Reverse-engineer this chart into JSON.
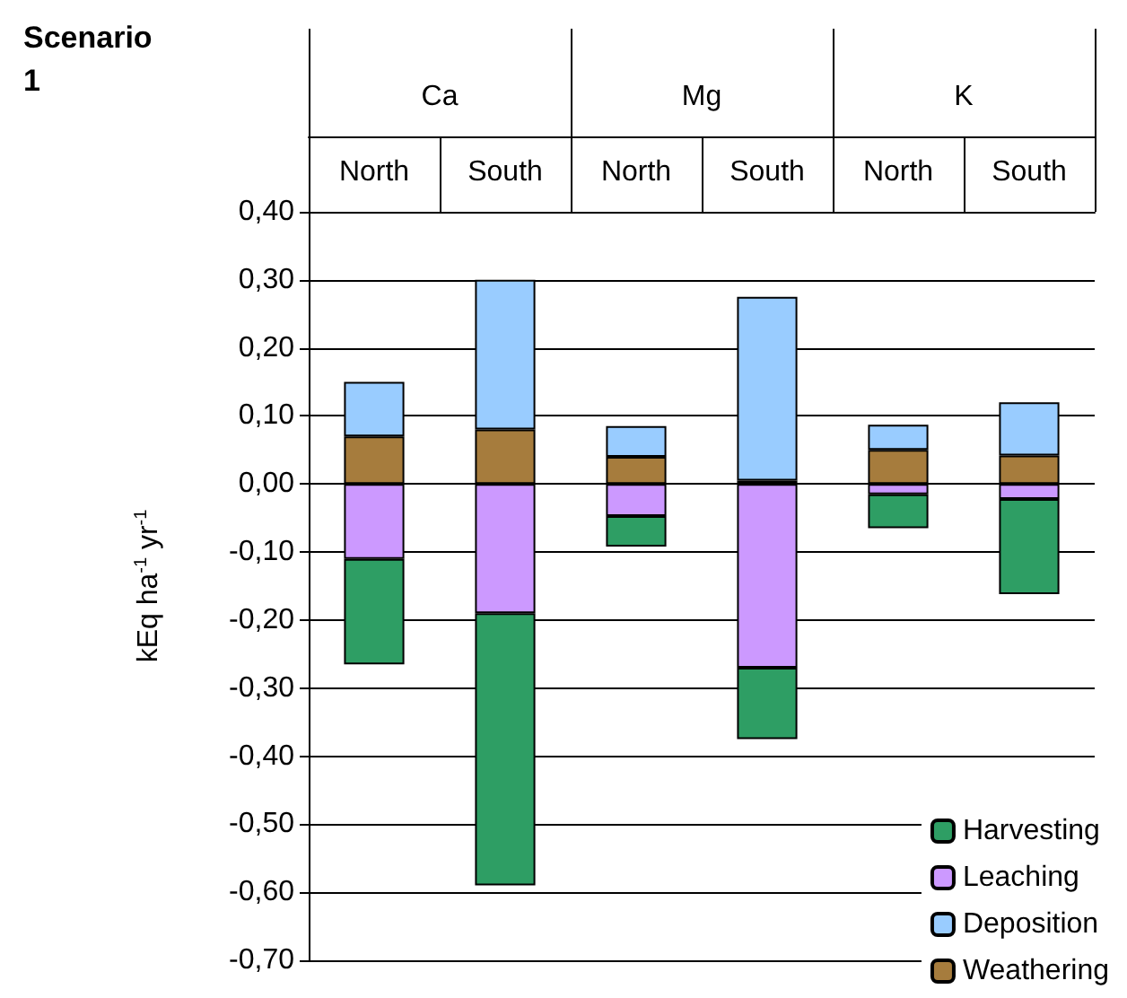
{
  "chart_data": {
    "type": "bar",
    "title": "Scenario 1",
    "ylabel": "kEq ha$^{-1}$ yr$^{-1}$",
    "categories": [
      "North",
      "South",
      "North",
      "South",
      "North",
      "South"
    ],
    "annotations": [
      "Ca",
      "Mg",
      "K"
    ],
    "stacked": true,
    "series": [
      {
        "name": "Weathering",
        "color": "#a67c3d",
        "values": [
          0.07,
          0.08,
          0.04,
          0.005,
          0.05,
          0.042
        ]
      },
      {
        "name": "Deposition",
        "color": "#99ccff",
        "values": [
          0.08,
          0.22,
          0.045,
          0.27,
          0.037,
          0.078
        ]
      },
      {
        "name": "Leaching",
        "color": "#cc99ff",
        "values": [
          -0.11,
          -0.19,
          -0.047,
          -0.27,
          -0.015,
          -0.022
        ]
      },
      {
        "name": "Harvesting",
        "color": "#2e9e64",
        "values": [
          -0.155,
          -0.4,
          -0.045,
          -0.105,
          -0.05,
          -0.14
        ]
      }
    ],
    "ylim": [
      -0.7,
      0.4
    ],
    "yticks": [
      {
        "value": 0.4,
        "label": "0,40"
      },
      {
        "value": 0.3,
        "label": "0,30"
      },
      {
        "value": 0.2,
        "label": "0,20"
      },
      {
        "value": 0.1,
        "label": "0,10"
      },
      {
        "value": 0,
        "label": "0,00"
      },
      {
        "value": -0.1,
        "label": "-0,10"
      },
      {
        "value": -0.2,
        "label": "-0,20"
      },
      {
        "value": -0.3,
        "label": "-0,30"
      },
      {
        "value": -0.4,
        "label": "-0,40"
      },
      {
        "value": -0.5,
        "label": "-0,50"
      },
      {
        "value": -0.6,
        "label": "-0,60"
      },
      {
        "value": -0.7,
        "label": "-0,70"
      }
    ],
    "grid": "y",
    "legend": "bottom right"
  }
}
